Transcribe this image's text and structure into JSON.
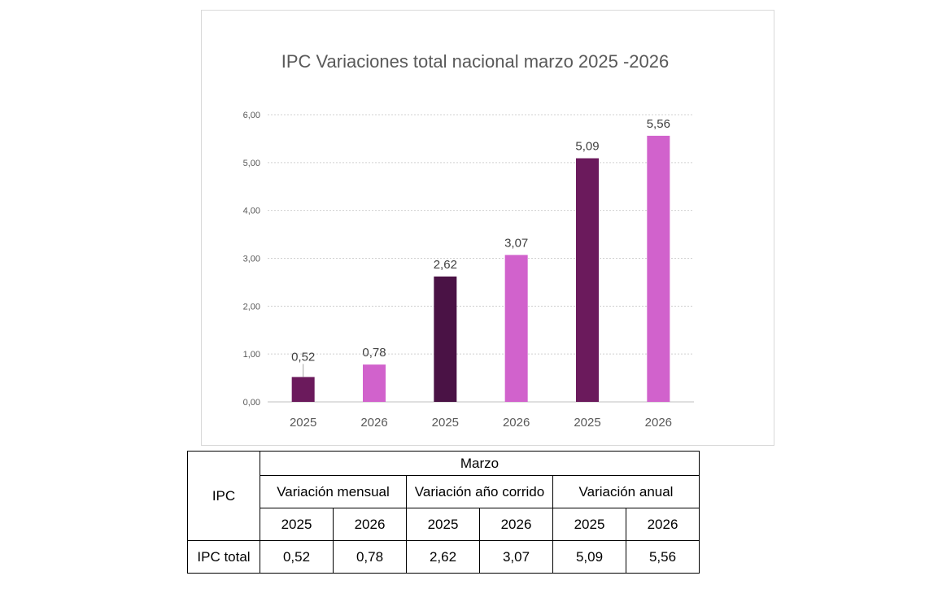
{
  "chart_data": {
    "type": "bar",
    "title": "IPC Variaciones total nacional marzo 2025 -2026",
    "categories": [
      "2025",
      "2026",
      "2025",
      "2026",
      "2025",
      "2026"
    ],
    "values": [
      0.52,
      0.78,
      2.62,
      3.07,
      5.09,
      5.56
    ],
    "data_labels": [
      "0,52",
      "0,78",
      "2,62",
      "3,07",
      "5,09",
      "5,56"
    ],
    "colors": [
      "#6b1a5c",
      "#d162cc",
      "#4a1245",
      "#d162cc",
      "#6b1a5c",
      "#d162cc"
    ],
    "yticks": [
      "0,00",
      "1,00",
      "2,00",
      "3,00",
      "4,00",
      "5,00",
      "6,00"
    ],
    "ylim": [
      0,
      6
    ],
    "xlabel": "",
    "ylabel": "",
    "grid": true,
    "legend": "none"
  },
  "table": {
    "row_header": "IPC",
    "group_header": "Marzo",
    "categories": [
      "Variación mensual",
      "Variación año corrido",
      "Variación anual"
    ],
    "years": [
      "2025",
      "2026",
      "2025",
      "2026",
      "2025",
      "2026"
    ],
    "row_label": "IPC total",
    "values": [
      "0,52",
      "0,78",
      "2,62",
      "3,07",
      "5,09",
      "5,56"
    ]
  }
}
